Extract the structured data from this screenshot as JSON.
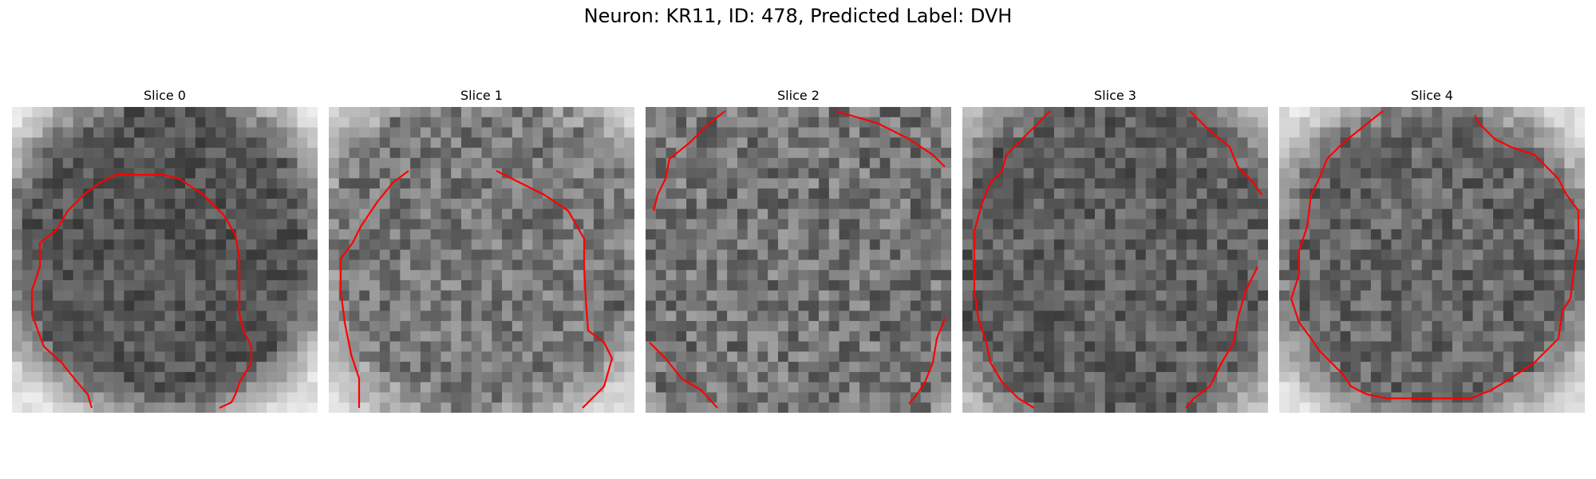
{
  "figure": {
    "title": "Neuron: KR11, ID: 478, Predicted Label: DVH",
    "contour_color": "#ff0000"
  },
  "panels": [
    {
      "title": "Slice 0"
    },
    {
      "title": "Slice 1"
    },
    {
      "title": "Slice 2"
    },
    {
      "title": "Slice 3"
    },
    {
      "title": "Slice 4"
    }
  ]
}
